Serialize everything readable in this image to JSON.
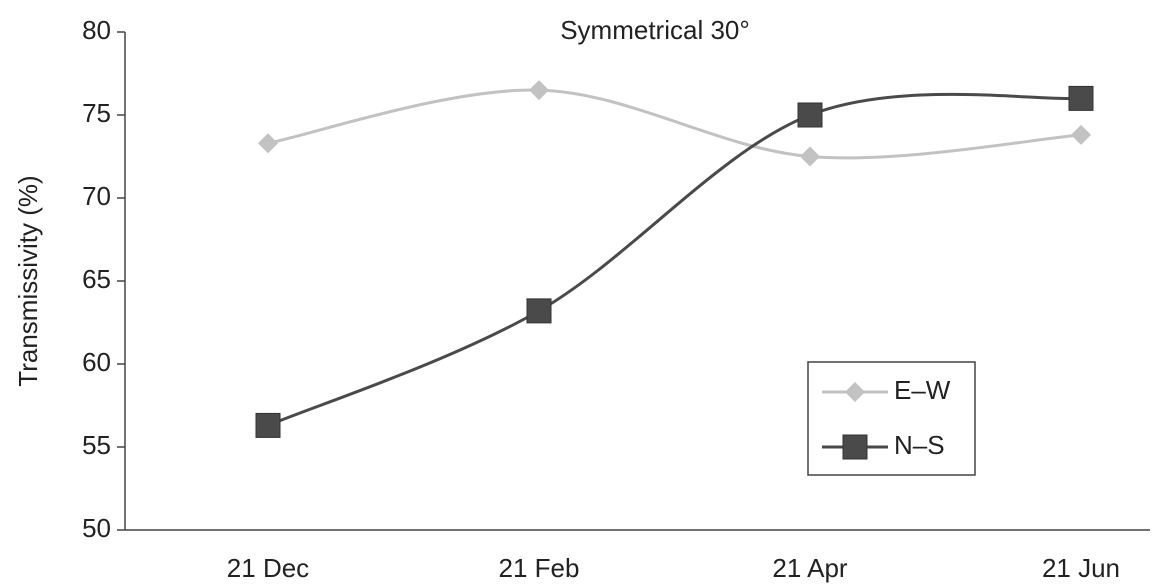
{
  "chart_data": {
    "type": "line",
    "title": "Symmetrical 30°",
    "y_label": "Transmissivity (%)",
    "categories": [
      "21 Dec",
      "21 Feb",
      "21 Apr",
      "21 Jun"
    ],
    "series": [
      {
        "name": "E–W",
        "color": "#c2c2c2",
        "marker": "diamond",
        "values": [
          73.3,
          76.5,
          72.5,
          73.8
        ]
      },
      {
        "name": "N–S",
        "color": "#4a4a4a",
        "marker": "square",
        "values": [
          56.3,
          63.2,
          75.0,
          76.0
        ]
      }
    ],
    "ylim": [
      50,
      80
    ],
    "yticks": [
      50,
      55,
      60,
      65,
      70,
      75,
      80
    ],
    "smooth": true,
    "legend": "lower-right"
  }
}
